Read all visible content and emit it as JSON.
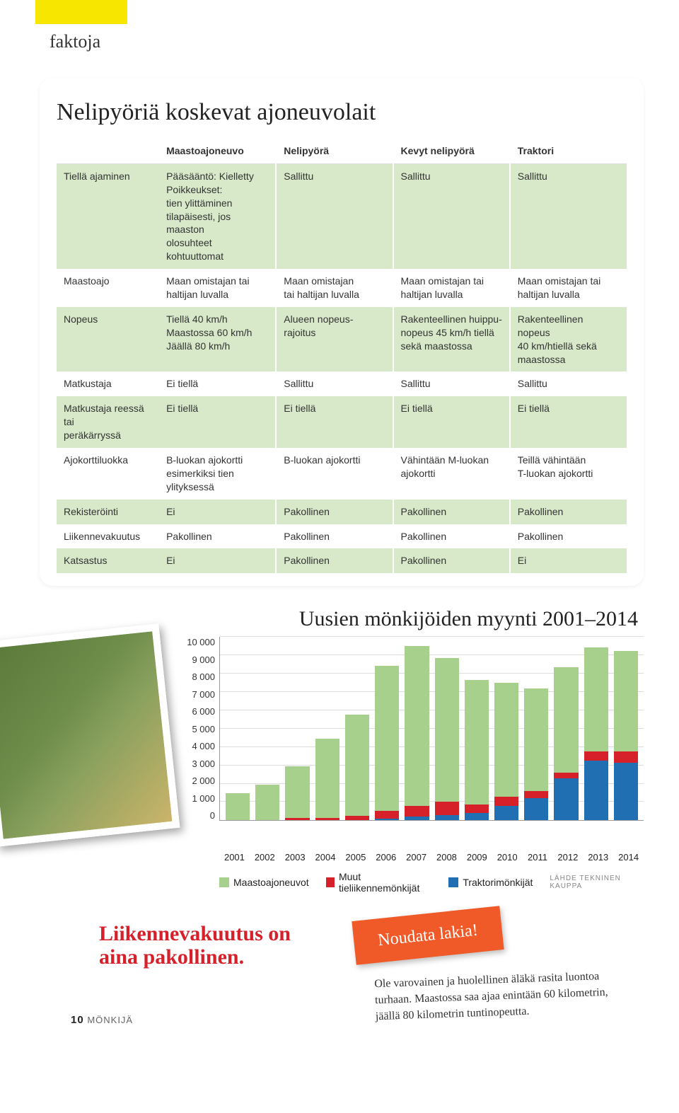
{
  "header_label": "faktoja",
  "table_title": "Nelipyöriä koskevat ajoneuvolait",
  "columns": [
    "Maastoajoneuvo",
    "Nelipyörä",
    "Kevyt nelipyörä",
    "Traktori"
  ],
  "rows": [
    {
      "label": "Tiellä ajaminen",
      "cells": [
        "Pääsääntö: Kielletty\nPoikkeukset:\ntien ylittäminen\ntilapäisesti, jos maaston\nolosuhteet kohtuuttomat",
        "Sallittu",
        "Sallittu",
        "Sallittu"
      ],
      "bg": "green"
    },
    {
      "label": "Maastoajo",
      "cells": [
        "Maan omistajan tai\nhaltijan luvalla",
        "Maan omistajan\ntai haltijan luvalla",
        "Maan omistajan tai\nhaltijan luvalla",
        "Maan omistajan tai\nhaltijan luvalla"
      ],
      "bg": "white"
    },
    {
      "label": "Nopeus",
      "cells": [
        "Tiellä 40 km/h\nMaastossa 60 km/h\nJäällä 80 km/h",
        "Alueen nopeus-\nrajoitus",
        "Rakenteellinen huippu-\nnopeus 45 km/h tiellä\nsekä maastossa",
        "Rakenteellinen\nnopeus\n40 km/htiellä sekä\nmaastossa"
      ],
      "bg": "green"
    },
    {
      "label": "Matkustaja",
      "cells": [
        "Ei tiellä",
        "Sallittu",
        "Sallittu",
        "Sallittu"
      ],
      "bg": "white"
    },
    {
      "label": "Matkustaja reessä tai\nperäkärryssä",
      "cells": [
        "Ei tiellä",
        "Ei tiellä",
        "Ei tiellä",
        "Ei tiellä"
      ],
      "bg": "green"
    },
    {
      "label": "Ajokorttiluokka",
      "cells": [
        "B-luokan ajokortti\nesimerkiksi tien\nylityksessä",
        "B-luokan ajokortti",
        "Vähintään M-luokan\najokortti",
        "Teillä vähintään\nT-luokan ajokortti"
      ],
      "bg": "white"
    },
    {
      "label": "Rekisteröinti",
      "cells": [
        "Ei",
        "Pakollinen",
        "Pakollinen",
        "Pakollinen"
      ],
      "bg": "green"
    },
    {
      "label": "Liikennevakuutus",
      "cells": [
        "Pakollinen",
        "Pakollinen",
        "Pakollinen",
        "Pakollinen"
      ],
      "bg": "white"
    },
    {
      "label": "Katsastus",
      "cells": [
        "Ei",
        "Pakollinen",
        "Pakollinen",
        "Ei"
      ],
      "bg": "green"
    }
  ],
  "chart": {
    "title": "Uusien mönkijöiden myynti 2001–2014",
    "ymax": 10000,
    "ytick_step": 1000,
    "ylabels": [
      "10 000",
      "9 000",
      "8 000",
      "7 000",
      "6 000",
      "5 000",
      "4 000",
      "3 000",
      "2 000",
      "1 000",
      "0"
    ],
    "years": [
      "2001",
      "2002",
      "2003",
      "2004",
      "2005",
      "2006",
      "2007",
      "2008",
      "2009",
      "2010",
      "2011",
      "2012",
      "2013",
      "2014"
    ],
    "series_colors": {
      "maasto": "#a8d08d",
      "muut": "#d6202a",
      "traktori": "#1f6fb2"
    },
    "grid_color": "#dddddd",
    "bars": [
      {
        "maasto": 1500,
        "muut": 0,
        "traktori": 0
      },
      {
        "maasto": 1950,
        "muut": 0,
        "traktori": 0
      },
      {
        "maasto": 2800,
        "muut": 150,
        "traktori": 0
      },
      {
        "maasto": 4300,
        "muut": 150,
        "traktori": 0
      },
      {
        "maasto": 5500,
        "muut": 250,
        "traktori": 0
      },
      {
        "maasto": 7950,
        "muut": 400,
        "traktori": 100
      },
      {
        "maasto": 8700,
        "muut": 600,
        "traktori": 200
      },
      {
        "maasto": 7850,
        "muut": 700,
        "traktori": 300
      },
      {
        "maasto": 6800,
        "muut": 450,
        "traktori": 400
      },
      {
        "maasto": 6200,
        "muut": 500,
        "traktori": 800
      },
      {
        "maasto": 5600,
        "muut": 400,
        "traktori": 1200
      },
      {
        "maasto": 5750,
        "muut": 300,
        "traktori": 2300
      },
      {
        "maasto": 5700,
        "muut": 500,
        "traktori": 3250
      },
      {
        "maasto": 5500,
        "muut": 600,
        "traktori": 3150
      }
    ],
    "legend": [
      {
        "color": "#a8d08d",
        "label": "Maastoajoneuvot"
      },
      {
        "color": "#d6202a",
        "label": "Muut tieliikennemönkijät"
      },
      {
        "color": "#1f6fb2",
        "label": "Traktorimönkijät"
      }
    ],
    "legend_source": "LÄHDE TEKNINEN KAUPPA"
  },
  "red_headline": "Liikennevakuutus on\naina pakollinen.",
  "sticky_text": "Noudata lakia!",
  "note_text": "Ole varovainen ja huolellinen äläkä rasita luontoa turhaan. Maastossa saa ajaa enintään 60 kilometrin, jäällä 80 kilometrin tuntinopeutta.",
  "page_number": "10",
  "page_label": "MÖNKIJÄ"
}
